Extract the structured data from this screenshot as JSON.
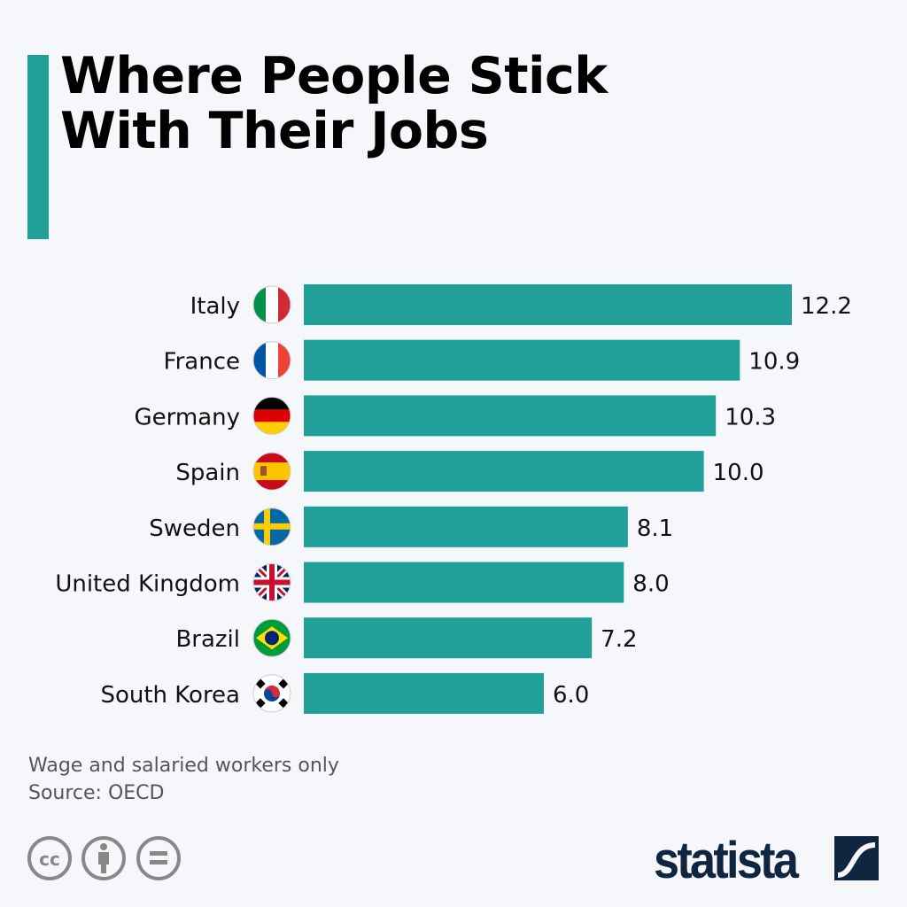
{
  "title": "Where People Stick With Their Jobs",
  "notes": [
    "Wage and salaried workers only",
    "Source: OECD"
  ],
  "brand": "statista",
  "colors": {
    "bar": "#21a099",
    "accent": "#21a099",
    "brand": "#0f2540"
  },
  "chart_data": {
    "type": "bar",
    "orientation": "horizontal",
    "categories": [
      "Italy",
      "France",
      "Germany",
      "Spain",
      "Sweden",
      "United Kingdom",
      "Brazil",
      "South Korea"
    ],
    "values": [
      12.2,
      10.9,
      10.3,
      10.0,
      8.1,
      8.0,
      7.2,
      6.0
    ],
    "labels": [
      "12.2",
      "10.9",
      "10.3",
      "10.0",
      "8.1",
      "8.0",
      "7.2",
      "6.0"
    ],
    "flags": [
      "italy-flag",
      "france-flag",
      "germany-flag",
      "spain-flag",
      "sweden-flag",
      "uk-flag",
      "brazil-flag",
      "south-korea-flag"
    ],
    "xlim": [
      0,
      12.2
    ],
    "grid": false
  }
}
